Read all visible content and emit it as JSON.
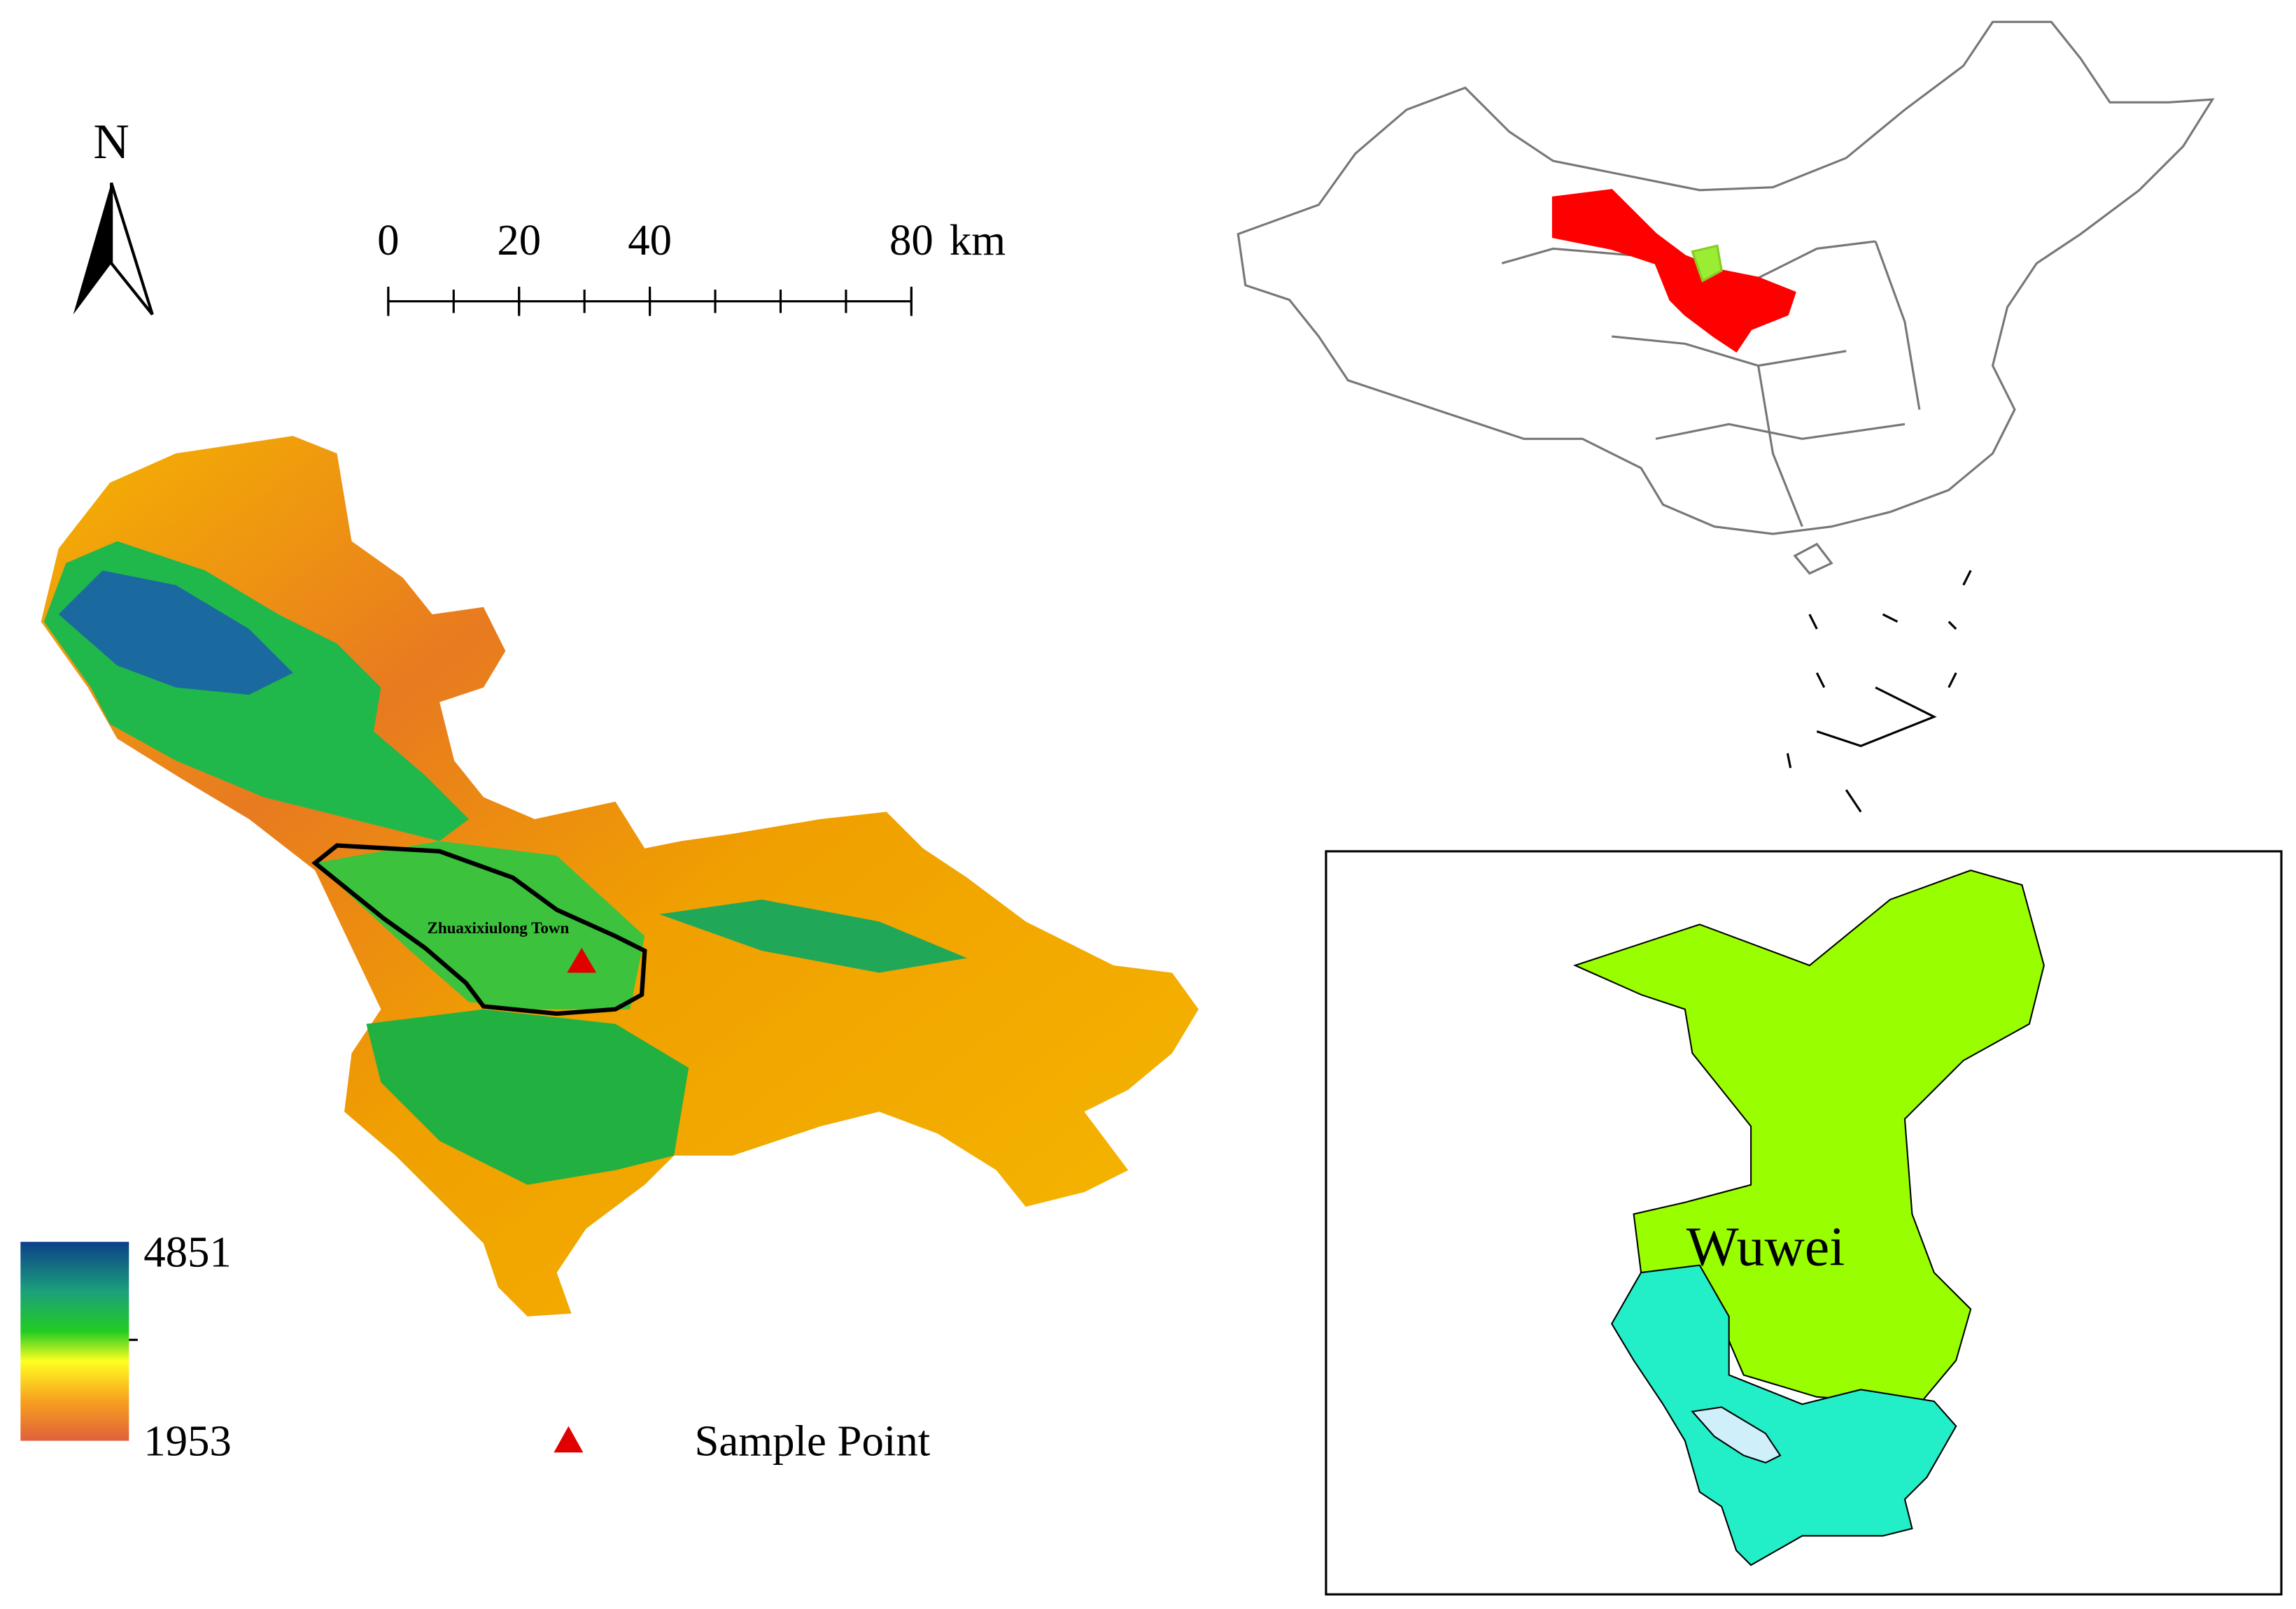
{
  "north_arrow": {
    "label": "N"
  },
  "scale_bar": {
    "ticks": [
      0,
      20,
      40,
      80
    ],
    "max": 80,
    "unit": "km"
  },
  "dem_map": {
    "town_label": "Zhuaxixiulong Town"
  },
  "legend": {
    "max": 4851,
    "min": 1953,
    "sample_point": "Sample Point"
  },
  "inset": {
    "label": "Wuwei"
  }
}
